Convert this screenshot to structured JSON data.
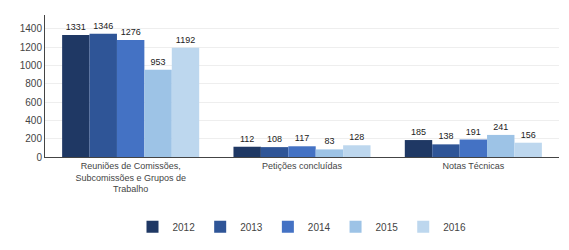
{
  "chart_data": {
    "type": "bar",
    "categories": [
      "Reuniões de Comissões,\nSubcomissões e Grupos de\nTrabalho",
      "Petições concluídas",
      "Notas Técnicas"
    ],
    "series": [
      {
        "name": "2012",
        "color": "#1F3864",
        "values": [
          1331,
          112,
          185
        ]
      },
      {
        "name": "2013",
        "color": "#2F5597",
        "values": [
          1346,
          108,
          138
        ]
      },
      {
        "name": "2014",
        "color": "#4472C4",
        "values": [
          1276,
          117,
          191
        ]
      },
      {
        "name": "2015",
        "color": "#9DC3E6",
        "values": [
          953,
          83,
          241
        ]
      },
      {
        "name": "2016",
        "color": "#BDD7EE",
        "values": [
          1192,
          128,
          156
        ]
      }
    ],
    "ylim": [
      0,
      1550
    ],
    "yticks": [
      0,
      200,
      400,
      600,
      800,
      1000,
      1200,
      1400
    ],
    "grid": true,
    "legend": "bottom",
    "data_labels": true
  }
}
